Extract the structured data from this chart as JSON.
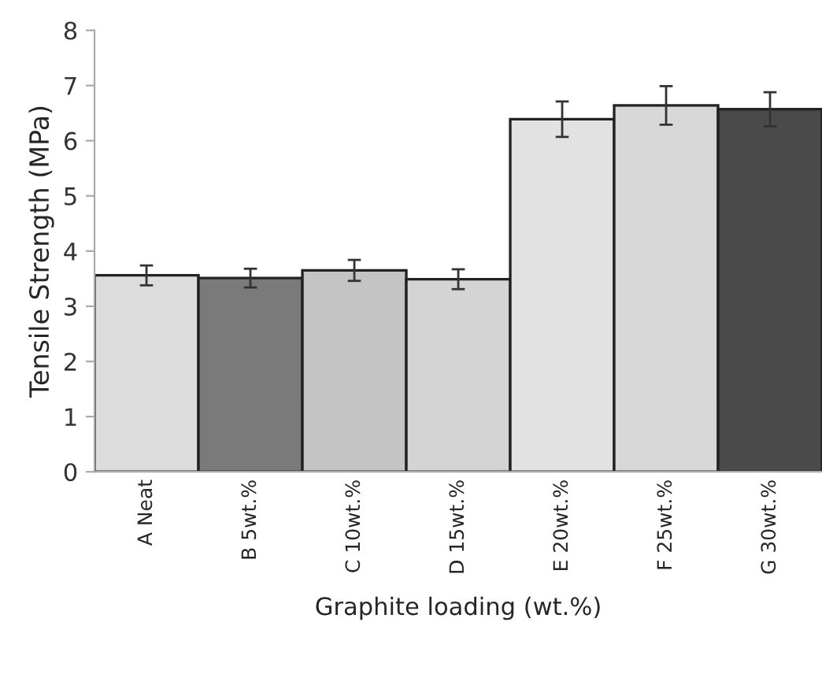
{
  "chart_data": {
    "type": "bar",
    "xlabel": "Graphite loading (wt.%)",
    "ylabel": "Tensile Strength (MPa)",
    "categories": [
      "A Neat",
      "B 5wt.%",
      "C 10wt.%",
      "D 15wt.%",
      "E 20wt.%",
      "F 25wt.%",
      "G 30wt.%"
    ],
    "values": [
      3.56,
      3.51,
      3.65,
      3.49,
      6.39,
      6.64,
      6.57
    ],
    "errors": [
      0.18,
      0.17,
      0.19,
      0.18,
      0.32,
      0.35,
      0.31
    ],
    "colors": [
      "#dcdcdc",
      "#7a7a7a",
      "#c4c4c4",
      "#d4d4d4",
      "#e2e2e2",
      "#d8d8d8",
      "#4a4a4a"
    ],
    "ylim": [
      0,
      8
    ],
    "yticks": [
      0,
      1,
      2,
      3,
      4,
      5,
      6,
      7,
      8
    ],
    "grid": false
  }
}
